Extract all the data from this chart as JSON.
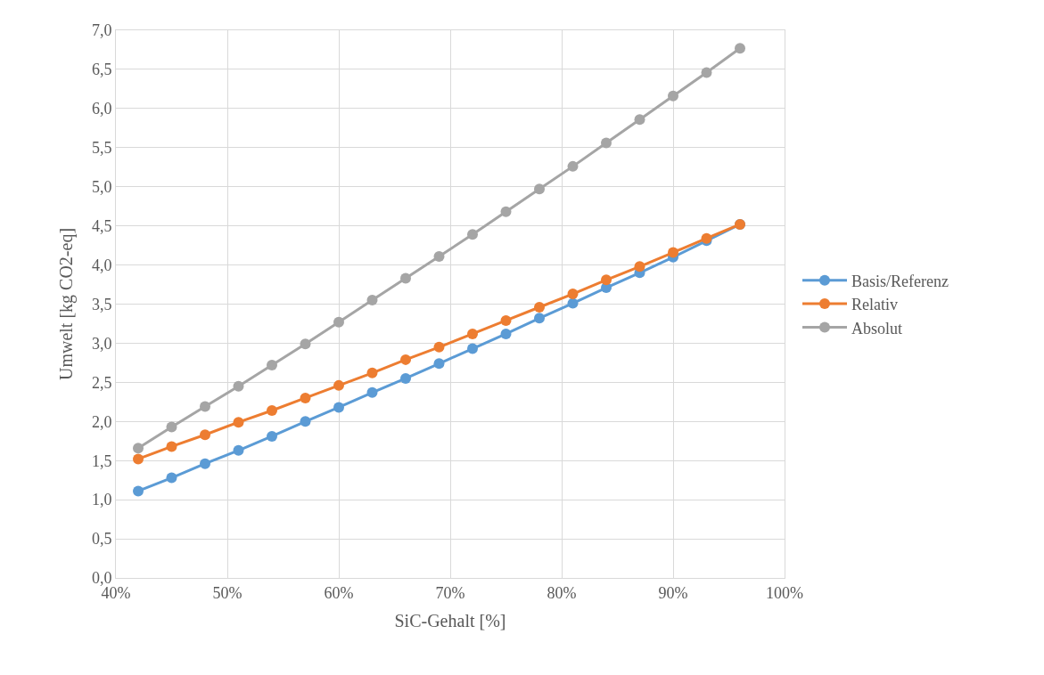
{
  "chart_data": {
    "type": "line",
    "xlabel": "SiC-Gehalt [%]",
    "ylabel": "Umwelt [kg CO2-eq]",
    "x": [
      42,
      45,
      48,
      51,
      54,
      57,
      60,
      63,
      66,
      69,
      72,
      75,
      78,
      81,
      84,
      87,
      90,
      93,
      96
    ],
    "series": [
      {
        "name": "Basis/Referenz",
        "color": "#5b9bd5",
        "values": [
          1.11,
          1.28,
          1.46,
          1.63,
          1.81,
          2.0,
          2.18,
          2.37,
          2.55,
          2.74,
          2.93,
          3.12,
          3.32,
          3.51,
          3.71,
          3.9,
          4.1,
          4.31,
          4.52
        ]
      },
      {
        "name": "Relativ",
        "color": "#ed7d31",
        "values": [
          1.52,
          1.68,
          1.83,
          1.99,
          2.14,
          2.3,
          2.46,
          2.62,
          2.79,
          2.95,
          3.12,
          3.29,
          3.46,
          3.63,
          3.81,
          3.98,
          4.16,
          4.34,
          4.52
        ]
      },
      {
        "name": "Absolut",
        "color": "#a5a5a5",
        "values": [
          1.66,
          1.93,
          2.19,
          2.45,
          2.72,
          2.99,
          3.27,
          3.55,
          3.83,
          4.11,
          4.39,
          4.68,
          4.97,
          5.26,
          5.56,
          5.86,
          6.16,
          6.46,
          6.77
        ]
      }
    ],
    "xlim": [
      40,
      100
    ],
    "xticks": [
      {
        "value": 40,
        "label": "40%"
      },
      {
        "value": 50,
        "label": "50%"
      },
      {
        "value": 60,
        "label": "60%"
      },
      {
        "value": 70,
        "label": "70%"
      },
      {
        "value": 80,
        "label": "80%"
      },
      {
        "value": 90,
        "label": "90%"
      },
      {
        "value": 100,
        "label": "100%"
      }
    ],
    "ylim": [
      0,
      7
    ],
    "yticks": [
      {
        "value": 0,
        "label": "0,0"
      },
      {
        "value": 0.5,
        "label": "0,5"
      },
      {
        "value": 1,
        "label": "1,0"
      },
      {
        "value": 1.5,
        "label": "1,5"
      },
      {
        "value": 2,
        "label": "2,0"
      },
      {
        "value": 2.5,
        "label": "2,5"
      },
      {
        "value": 3,
        "label": "3,0"
      },
      {
        "value": 3.5,
        "label": "3,5"
      },
      {
        "value": 4,
        "label": "4,0"
      },
      {
        "value": 4.5,
        "label": "4,5"
      },
      {
        "value": 5,
        "label": "5,0"
      },
      {
        "value": 5.5,
        "label": "5,5"
      },
      {
        "value": 6,
        "label": "6,0"
      },
      {
        "value": 6.5,
        "label": "6,5"
      },
      {
        "value": 7,
        "label": "7,0"
      }
    ],
    "grid": true,
    "legend": "right",
    "marker": "circle",
    "line_style": "solid"
  }
}
